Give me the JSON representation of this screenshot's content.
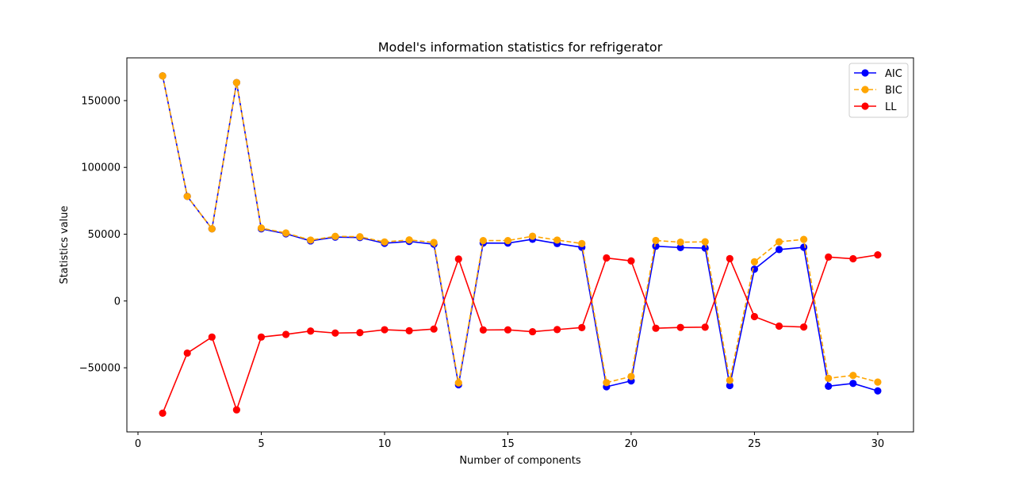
{
  "chart_data": {
    "type": "line",
    "title": "Model's information statistics for refrigerator",
    "xlabel": "Number of components",
    "ylabel": "Statistics value",
    "xlim": [
      -0.45,
      31.45
    ],
    "ylim": [
      -98000,
      182000
    ],
    "x_ticks": [
      0,
      5,
      10,
      15,
      20,
      25,
      30
    ],
    "y_ticks": [
      -50000,
      0,
      50000,
      100000,
      150000
    ],
    "y_tick_labels": [
      "−50000",
      "0",
      "50000",
      "100000",
      "150000"
    ],
    "grid": false,
    "legend_position": "top-right",
    "x": [
      1,
      2,
      3,
      4,
      5,
      6,
      7,
      8,
      9,
      10,
      11,
      12,
      13,
      14,
      15,
      16,
      17,
      18,
      19,
      20,
      21,
      22,
      23,
      24,
      25,
      26,
      27,
      28,
      29,
      30
    ],
    "series": [
      {
        "name": "AIC",
        "color": "#0000ff",
        "linestyle": "solid",
        "values": [
          168500,
          78300,
          54000,
          163500,
          54000,
          50300,
          45000,
          47800,
          47500,
          43200,
          44600,
          42500,
          -62700,
          43400,
          43300,
          46200,
          43000,
          40200,
          -64200,
          -59800,
          41000,
          40000,
          39600,
          -63300,
          23800,
          38500,
          40200,
          -63800,
          -61700,
          -67300
        ]
      },
      {
        "name": "BIC",
        "color": "#ffa500",
        "linestyle": "dashed",
        "values": [
          168500,
          78300,
          54000,
          163500,
          54600,
          50900,
          45600,
          48400,
          48100,
          44200,
          45700,
          43800,
          -61300,
          45200,
          45200,
          48500,
          45600,
          43000,
          -61100,
          -56500,
          45300,
          44000,
          44300,
          -59400,
          29300,
          44300,
          46100,
          -57900,
          -55700,
          -60700
        ]
      },
      {
        "name": "LL",
        "color": "#ff0000",
        "linestyle": "solid",
        "values": [
          -84000,
          -39000,
          -27000,
          -81500,
          -27000,
          -25000,
          -22500,
          -24000,
          -23700,
          -21500,
          -22300,
          -21000,
          31400,
          -21700,
          -21600,
          -23000,
          -21400,
          -19900,
          32200,
          30000,
          -20400,
          -19800,
          -19600,
          31700,
          -11700,
          -18800,
          -19500,
          32900,
          31600,
          34500
        ]
      }
    ]
  }
}
